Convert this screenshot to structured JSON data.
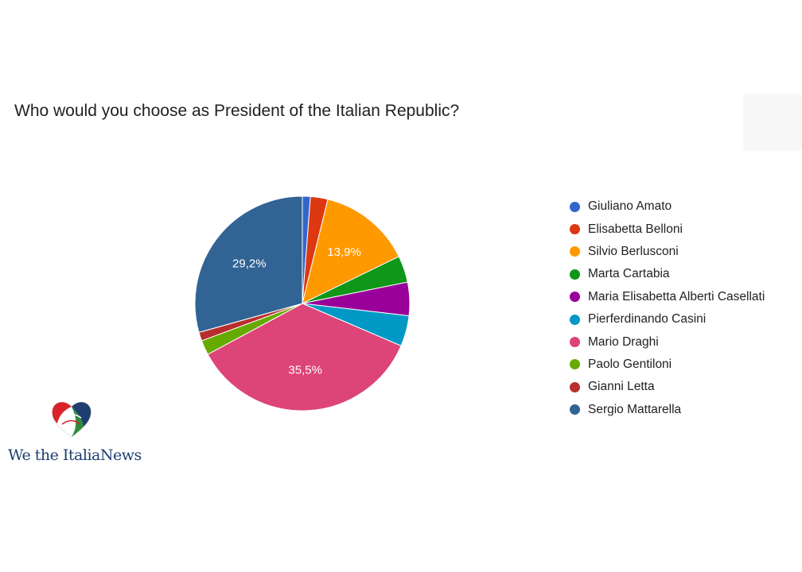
{
  "title": "Who would you choose as President of the Italian Republic?",
  "logo": {
    "text": "We the ItaliaNews"
  },
  "chart_data": {
    "type": "pie",
    "title": "Who would you choose as President of the Italian Republic?",
    "legend_position": "right",
    "start_angle_deg": 90,
    "slices": [
      {
        "label": "Giuliano Amato",
        "value": 1.2,
        "color": "#3366cc",
        "data_label": ""
      },
      {
        "label": "Elisabetta Belloni",
        "value": 2.6,
        "color": "#dc3912",
        "data_label": ""
      },
      {
        "label": "Silvio Berlusconi",
        "value": 13.9,
        "color": "#ff9900",
        "data_label": "13,9%"
      },
      {
        "label": "Marta Cartabia",
        "value": 4.0,
        "color": "#109618",
        "data_label": ""
      },
      {
        "label": "Maria Elisabetta Alberti Casellati",
        "value": 5.0,
        "color": "#990099",
        "data_label": ""
      },
      {
        "label": "Pierferdinando Casini",
        "value": 4.6,
        "color": "#0099c6",
        "data_label": ""
      },
      {
        "label": "Mario Draghi",
        "value": 35.5,
        "color": "#dd4477",
        "data_label": "35,5%"
      },
      {
        "label": "Paolo Gentiloni",
        "value": 2.2,
        "color": "#66aa00",
        "data_label": ""
      },
      {
        "label": "Gianni Letta",
        "value": 1.3,
        "color": "#b82e2e",
        "data_label": ""
      },
      {
        "label": "Sergio Mattarella",
        "value": 29.2,
        "color": "#316395",
        "data_label": "29,2%"
      }
    ]
  }
}
